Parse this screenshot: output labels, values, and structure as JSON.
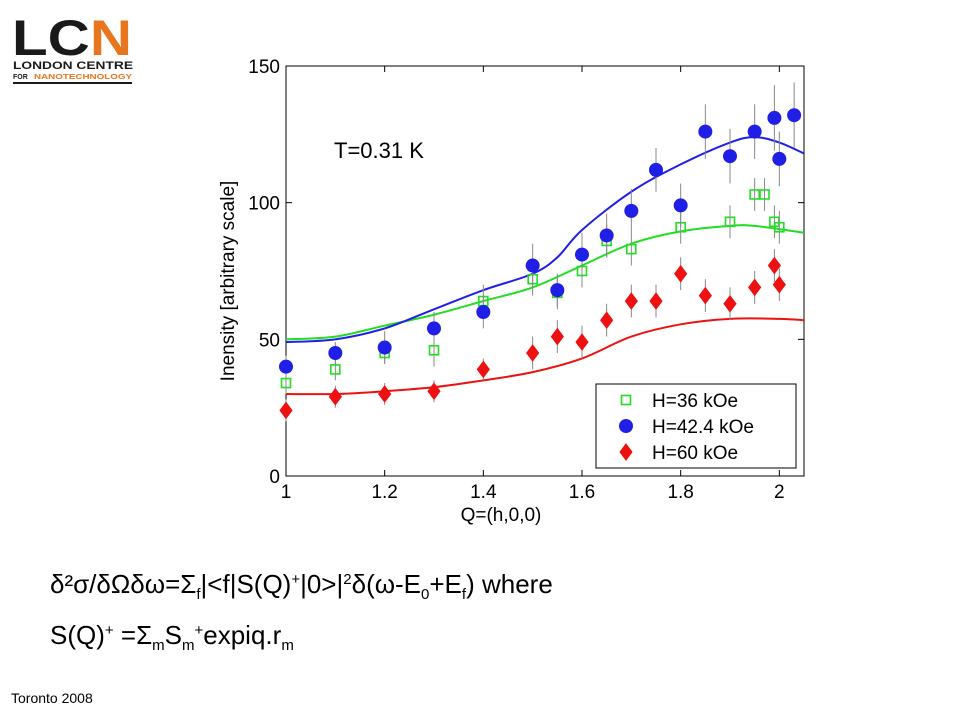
{
  "logo": {
    "letters": "LCN",
    "line1": "LONDON CENTRE",
    "line2_prefix": "FOR",
    "line2_rest": "NANOTECHNOLOGY",
    "accent": "#e8761f"
  },
  "chart_data": {
    "type": "scatter",
    "annotation": "T=0.31 K",
    "xlabel": "Q=(h,0,0)",
    "ylabel": "Inensity [arbitrary scale]",
    "xlim": [
      1,
      2.05
    ],
    "ylim": [
      0,
      150
    ],
    "x_ticks": [
      {
        "v": 1,
        "label": "1"
      },
      {
        "v": 1.2,
        "label": "1.2"
      },
      {
        "v": 1.4,
        "label": "1.4"
      },
      {
        "v": 1.6,
        "label": "1.6"
      },
      {
        "v": 1.8,
        "label": "1.8"
      },
      {
        "v": 2,
        "label": "2"
      }
    ],
    "y_ticks": [
      {
        "v": 0,
        "label": "0"
      },
      {
        "v": 50,
        "label": "50"
      },
      {
        "v": 100,
        "label": "100"
      },
      {
        "v": 150,
        "label": "150"
      }
    ],
    "legend_position": "bottom-right",
    "series": [
      {
        "name": "H=36 kOe",
        "marker": "square-open",
        "color": "#22dd22",
        "points": [
          {
            "x": 1.0,
            "y": 34,
            "err": 2
          },
          {
            "x": 1.1,
            "y": 39,
            "err": 2
          },
          {
            "x": 1.2,
            "y": 45,
            "err": 2
          },
          {
            "x": 1.3,
            "y": 46,
            "err": 3
          },
          {
            "x": 1.4,
            "y": 64,
            "err": 3
          },
          {
            "x": 1.5,
            "y": 72,
            "err": 3
          },
          {
            "x": 1.55,
            "y": 67,
            "err": 3
          },
          {
            "x": 1.6,
            "y": 75,
            "err": 3
          },
          {
            "x": 1.65,
            "y": 86,
            "err": 3
          },
          {
            "x": 1.7,
            "y": 83,
            "err": 3
          },
          {
            "x": 1.8,
            "y": 91,
            "err": 3
          },
          {
            "x": 1.9,
            "y": 93,
            "err": 3
          },
          {
            "x": 1.95,
            "y": 103,
            "err": 3
          },
          {
            "x": 1.97,
            "y": 103,
            "err": 3
          },
          {
            "x": 1.99,
            "y": 93,
            "err": 3
          },
          {
            "x": 2.0,
            "y": 91,
            "err": 3
          }
        ],
        "curve": [
          [
            1.0,
            50
          ],
          [
            1.1,
            51
          ],
          [
            1.2,
            55
          ],
          [
            1.3,
            59
          ],
          [
            1.4,
            64
          ],
          [
            1.5,
            69
          ],
          [
            1.6,
            77
          ],
          [
            1.7,
            85
          ],
          [
            1.8,
            89.5
          ],
          [
            1.9,
            91.5
          ],
          [
            1.95,
            91.5
          ],
          [
            2.05,
            89
          ]
        ]
      },
      {
        "name": "H=42.4 kOe",
        "marker": "circle",
        "color": "#1f1fe6",
        "points": [
          {
            "x": 1.0,
            "y": 40,
            "err": 2
          },
          {
            "x": 1.1,
            "y": 45,
            "err": 2
          },
          {
            "x": 1.2,
            "y": 47,
            "err": 3
          },
          {
            "x": 1.3,
            "y": 54,
            "err": 3
          },
          {
            "x": 1.4,
            "y": 60,
            "err": 3
          },
          {
            "x": 1.5,
            "y": 77,
            "err": 4
          },
          {
            "x": 1.55,
            "y": 68,
            "err": 3
          },
          {
            "x": 1.6,
            "y": 81,
            "err": 4
          },
          {
            "x": 1.65,
            "y": 88,
            "err": 4
          },
          {
            "x": 1.7,
            "y": 97,
            "err": 4
          },
          {
            "x": 1.75,
            "y": 112,
            "err": 4
          },
          {
            "x": 1.8,
            "y": 99,
            "err": 4
          },
          {
            "x": 1.85,
            "y": 126,
            "err": 5
          },
          {
            "x": 1.9,
            "y": 117,
            "err": 5
          },
          {
            "x": 1.95,
            "y": 126,
            "err": 5
          },
          {
            "x": 1.99,
            "y": 131,
            "err": 6
          },
          {
            "x": 2.0,
            "y": 116,
            "err": 5
          },
          {
            "x": 2.03,
            "y": 132,
            "err": 6
          }
        ],
        "curve": [
          [
            1.0,
            49
          ],
          [
            1.1,
            50
          ],
          [
            1.2,
            54
          ],
          [
            1.3,
            61
          ],
          [
            1.4,
            68
          ],
          [
            1.5,
            74
          ],
          [
            1.55,
            80
          ],
          [
            1.6,
            90
          ],
          [
            1.7,
            104
          ],
          [
            1.8,
            114
          ],
          [
            1.9,
            122
          ],
          [
            1.95,
            124
          ],
          [
            2.0,
            122
          ],
          [
            2.05,
            118
          ]
        ]
      },
      {
        "name": "H=60 kOe",
        "marker": "diamond",
        "color": "#ee1111",
        "points": [
          {
            "x": 1.0,
            "y": 24,
            "err": 2
          },
          {
            "x": 1.1,
            "y": 29,
            "err": 2
          },
          {
            "x": 1.2,
            "y": 30,
            "err": 2
          },
          {
            "x": 1.3,
            "y": 31,
            "err": 2
          },
          {
            "x": 1.4,
            "y": 39,
            "err": 2
          },
          {
            "x": 1.5,
            "y": 45,
            "err": 3
          },
          {
            "x": 1.55,
            "y": 51,
            "err": 3
          },
          {
            "x": 1.6,
            "y": 49,
            "err": 3
          },
          {
            "x": 1.65,
            "y": 57,
            "err": 3
          },
          {
            "x": 1.7,
            "y": 64,
            "err": 3
          },
          {
            "x": 1.75,
            "y": 64,
            "err": 3
          },
          {
            "x": 1.8,
            "y": 74,
            "err": 3
          },
          {
            "x": 1.85,
            "y": 66,
            "err": 3
          },
          {
            "x": 1.9,
            "y": 63,
            "err": 3
          },
          {
            "x": 1.95,
            "y": 69,
            "err": 3
          },
          {
            "x": 1.99,
            "y": 77,
            "err": 3
          },
          {
            "x": 2.0,
            "y": 70,
            "err": 3
          }
        ],
        "curve": [
          [
            1.0,
            30
          ],
          [
            1.1,
            30
          ],
          [
            1.2,
            31
          ],
          [
            1.3,
            32.5
          ],
          [
            1.4,
            35
          ],
          [
            1.5,
            38
          ],
          [
            1.6,
            43
          ],
          [
            1.7,
            51
          ],
          [
            1.8,
            55.5
          ],
          [
            1.9,
            57.5
          ],
          [
            2.0,
            57.5
          ],
          [
            2.05,
            57
          ]
        ]
      }
    ]
  },
  "formula": {
    "line1": {
      "lhs": "δ²σ/δΩδω=",
      "sigma": "Σ",
      "sigma_sub": "f",
      "bra": "|<f|S(Q)",
      "plus": "+",
      "ket": "|0>|",
      "sq": "2",
      "delta": "δ(ω-E",
      "sub0": "0",
      "plus_e": "+E",
      "sub_f": "f",
      "close": ")  where"
    },
    "line2": {
      "lhs": "S(Q)",
      "sup_plus": "+",
      "eq": " =",
      "sigma": "Σ",
      "sub_m": "m",
      "s": "S",
      "sub_m2": "m",
      "sup_plus2": "+",
      "expr": "expiq.r",
      "sub_m3": "m"
    }
  },
  "footer": "Toronto 2008"
}
